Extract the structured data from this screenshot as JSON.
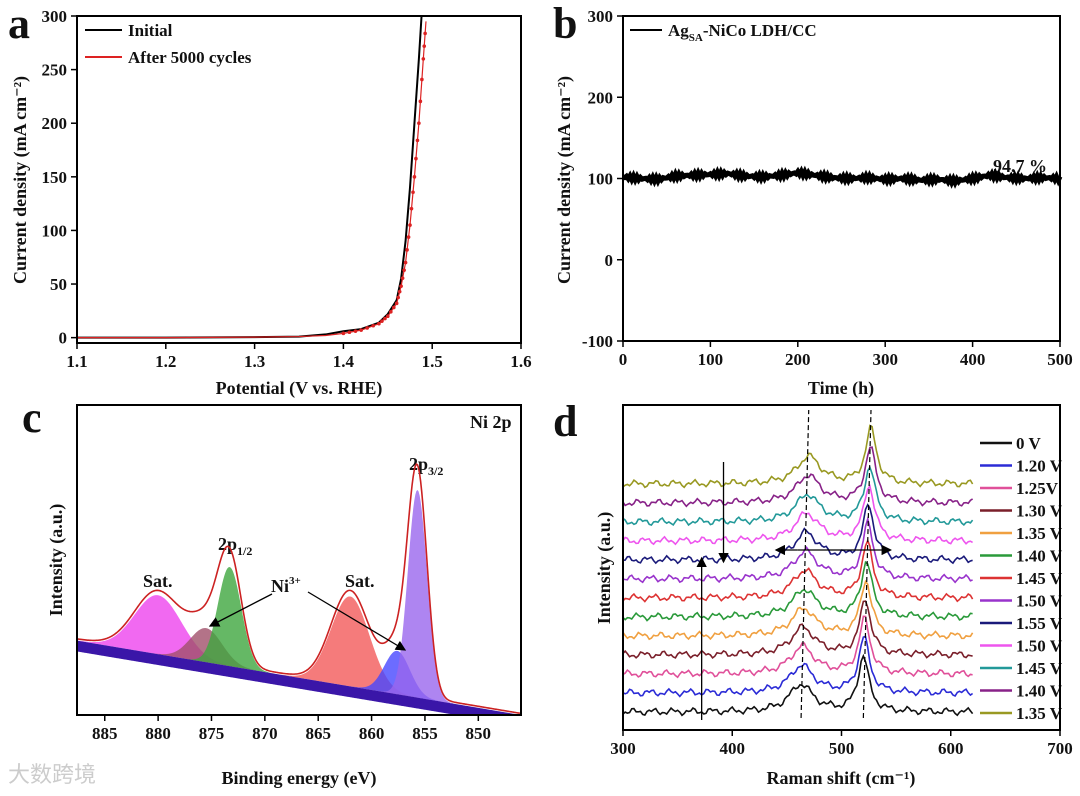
{
  "figure": {
    "panel_letters": [
      "a",
      "b",
      "c",
      "d"
    ],
    "watermark": "大数跨境"
  },
  "chart_data": [
    {
      "panel": "a",
      "type": "line",
      "xlabel": "Potential (V vs. RHE)",
      "ylabel": "Current density (mA cm⁻²)",
      "xlim": [
        1.1,
        1.6
      ],
      "ylim": [
        -5,
        300
      ],
      "xticks": [
        "1.1",
        "1.2",
        "1.3",
        "1.4",
        "1.5",
        "1.6"
      ],
      "yticks": [
        "0",
        "50",
        "100",
        "150",
        "200",
        "250",
        "300"
      ],
      "legend": "top-left",
      "series": [
        {
          "name": "Initial",
          "color": "#000000",
          "style": "line",
          "x": [
            1.1,
            1.2,
            1.3,
            1.35,
            1.38,
            1.4,
            1.42,
            1.44,
            1.45,
            1.46,
            1.465,
            1.47,
            1.475,
            1.48,
            1.485,
            1.488
          ],
          "y": [
            0,
            0,
            0.5,
            1,
            3,
            6,
            8,
            14,
            22,
            35,
            55,
            90,
            140,
            200,
            260,
            300
          ]
        },
        {
          "name": "After 5000 cycles",
          "color": "#dd2222",
          "style": "dots",
          "x": [
            1.1,
            1.2,
            1.3,
            1.35,
            1.38,
            1.4,
            1.42,
            1.44,
            1.45,
            1.46,
            1.465,
            1.47,
            1.475,
            1.48,
            1.485,
            1.49,
            1.493
          ],
          "y": [
            0,
            0,
            0.5,
            1,
            2,
            4,
            7,
            13,
            20,
            32,
            48,
            70,
            105,
            150,
            200,
            260,
            295
          ]
        }
      ]
    },
    {
      "panel": "b",
      "type": "line",
      "xlabel": "Time (h)",
      "ylabel": "Current density (mA cm⁻²)",
      "xlim": [
        0,
        500
      ],
      "ylim": [
        -100,
        300
      ],
      "xticks": [
        "0",
        "100",
        "200",
        "300",
        "400",
        "500"
      ],
      "yticks": [
        "-100",
        "0",
        "100",
        "200",
        "300"
      ],
      "legend": "top-left",
      "series": [
        {
          "name_main": "Ag",
          "name_sub": "SA",
          "name_rest": "-NiCo LDH/CC",
          "color": "#000000",
          "x": [
            0,
            20,
            40,
            60,
            80,
            100,
            120,
            140,
            160,
            180,
            200,
            220,
            240,
            260,
            280,
            300,
            320,
            340,
            360,
            380,
            400,
            420,
            440,
            460,
            480,
            500
          ],
          "y": [
            102,
            100,
            99,
            103,
            104,
            105,
            106,
            103,
            102,
            104,
            107,
            104,
            101,
            100,
            101,
            99,
            100,
            98,
            99,
            97,
            100,
            104,
            101,
            100,
            101,
            100
          ]
        }
      ],
      "annotation": "94.7 %"
    },
    {
      "panel": "c",
      "type": "area",
      "title": "Ni 2p",
      "xlabel": "Binding energy (eV)",
      "ylabel": "Intensity (a.u.)",
      "xlim": [
        887.6,
        846
      ],
      "ylim": [
        0,
        100
      ],
      "xticks": [
        "885",
        "880",
        "875",
        "870",
        "865",
        "860",
        "855",
        "850"
      ],
      "baseline": {
        "high_be_intensity": 24,
        "low_be_intensity": 0
      },
      "components": [
        {
          "label": "Sat.",
          "center": 880,
          "amplitude": 19,
          "width": 2.2,
          "color": "#ee44ee"
        },
        {
          "label": "Ni3+",
          "center": 875.5,
          "amplitude": 11,
          "width": 1.5,
          "color": "#a0506a"
        },
        {
          "label": "2p1/2",
          "center": 873.3,
          "amplitude": 32,
          "width": 1.1,
          "color": "#3fa63f"
        },
        {
          "label": "Sat.",
          "center": 862,
          "amplitude": 29,
          "width": 1.8,
          "color": "#f35a5a"
        },
        {
          "label": "Ni3+",
          "center": 857.6,
          "amplitude": 14,
          "width": 1.2,
          "color": "#4747ff"
        },
        {
          "label": "2p3/2",
          "center": 855.7,
          "amplitude": 67,
          "width": 0.9,
          "color": "#9a66ee"
        }
      ],
      "envelope_color": "#cc2222",
      "background_color": "#3a16a8",
      "annotations": {
        "sat": "Sat.",
        "p12_main": "2p",
        "p12_sub": "1/2",
        "p32_main": "2p",
        "p32_sub": "3/2",
        "ni_main": "Ni",
        "ni_sup": "3+"
      }
    },
    {
      "panel": "d",
      "type": "line",
      "xlabel": "Raman shift (cm⁻¹)",
      "ylabel": "Intensity (a.u.)",
      "xlim": [
        300,
        700
      ],
      "xticks": [
        "300",
        "400",
        "500",
        "600",
        "700"
      ],
      "data_xrange": [
        300,
        620
      ],
      "peak_relative_heights": [
        0.5,
        1.0
      ],
      "peak_shift_range": {
        "low": [
          463,
          520
        ],
        "high": [
          470,
          527
        ]
      },
      "legend": "right",
      "series": [
        {
          "name": "0 V",
          "color": "#111111"
        },
        {
          "name": "1.20 V",
          "color": "#2b2bd6"
        },
        {
          "name": "1.25V",
          "color": "#e0509a"
        },
        {
          "name": "1.30 V",
          "color": "#7a1f2a"
        },
        {
          "name": "1.35 V",
          "color": "#f0a040"
        },
        {
          "name": "1.40 V",
          "color": "#2a9a3a"
        },
        {
          "name": "1.45 V",
          "color": "#dd3333"
        },
        {
          "name": "1.50 V",
          "color": "#9933cc"
        },
        {
          "name": "1.55 V",
          "color": "#1a1a7a"
        },
        {
          "name": "1.50 V",
          "color": "#ee55ee"
        },
        {
          "name": "1.45 V",
          "color": "#229999"
        },
        {
          "name": "1.40 V",
          "color": "#882288"
        },
        {
          "name": "1.35 V",
          "color": "#999922"
        }
      ]
    }
  ]
}
